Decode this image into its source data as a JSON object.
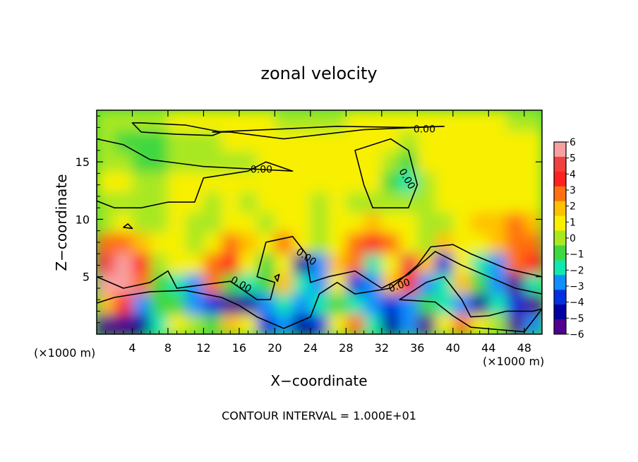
{
  "chart_data": {
    "type": "heatmap",
    "title": "zonal velocity",
    "xlabel": "X−coordinate",
    "ylabel": "Z−coordinate",
    "x_unit_left": "(×1000 m)",
    "x_unit_right": "(×1000 m)",
    "footer": "CONTOUR INTERVAL = 1.000E+01",
    "xlim": [
      0,
      50
    ],
    "ylim": [
      0,
      19.5
    ],
    "x_ticks": [
      4,
      8,
      12,
      16,
      20,
      24,
      28,
      32,
      36,
      40,
      44,
      48
    ],
    "y_ticks": [
      5,
      10,
      15
    ],
    "colorbar": {
      "range": [
        -6,
        6
      ],
      "ticks": [
        "6",
        "5",
        "4",
        "3",
        "2",
        "1",
        "0",
        "−1",
        "−2",
        "−3",
        "−4",
        "−5",
        "−6"
      ],
      "colors": [
        "#f8a0a0",
        "#f04040",
        "#ff2020",
        "#ff7010",
        "#ffc000",
        "#f8f000",
        "#a8e820",
        "#40d840",
        "#10e8b0",
        "#1090ff",
        "#0030e0",
        "#0000a0",
        "#500090"
      ]
    },
    "contour_label": "0.00",
    "field": [
      [
        -5.5,
        -6,
        -5,
        -2,
        1,
        0,
        -1,
        2,
        1,
        -4,
        -3,
        -5,
        -4,
        1,
        3,
        -2,
        -5,
        -3,
        -6,
        1,
        3,
        1,
        0,
        -6,
        -3
      ],
      [
        2,
        4,
        -3,
        -1,
        -1,
        -3,
        -4,
        -6,
        -5,
        -3,
        -2,
        -3,
        -2,
        -1,
        -2,
        -3,
        -4,
        -3,
        -1,
        -2,
        -3,
        -5,
        -2,
        -4,
        -6
      ],
      [
        6,
        6,
        3,
        -1,
        -2,
        -3,
        3,
        -1,
        -2,
        -1,
        2,
        -2,
        -3,
        1,
        -4,
        -3,
        2,
        4,
        -3,
        -2,
        2,
        -1,
        -3,
        -6,
        -2
      ],
      [
        5,
        6,
        4,
        0,
        1,
        1,
        3,
        4,
        1,
        -1,
        1,
        -5,
        -3,
        2,
        3,
        -2,
        1,
        5,
        2,
        -4,
        1,
        -2,
        -3,
        3,
        4
      ],
      [
        3,
        3,
        2,
        1,
        1,
        0,
        1,
        3,
        2,
        1,
        3,
        1,
        0,
        1,
        3,
        4,
        3,
        1,
        0,
        2,
        1,
        1,
        2,
        3,
        3
      ],
      [
        0,
        1,
        0,
        0,
        1,
        0,
        0,
        1,
        1,
        0,
        1,
        1,
        0,
        1,
        1,
        2,
        1,
        1,
        0,
        0,
        1,
        2,
        2,
        3,
        2
      ],
      [
        0,
        0,
        0,
        0,
        1,
        1,
        0,
        1,
        0,
        1,
        1,
        1,
        0,
        1,
        0,
        0,
        0,
        0,
        0,
        1,
        1,
        1,
        1,
        1,
        1
      ],
      [
        1,
        1,
        0,
        0,
        1,
        1,
        1,
        1,
        1,
        1,
        1,
        1,
        1,
        1,
        1,
        1,
        -1,
        -2,
        0,
        1,
        1,
        1,
        1,
        1,
        1
      ],
      [
        0,
        0,
        -1,
        -1,
        0,
        0,
        0,
        0,
        0,
        1,
        1,
        1,
        1,
        1,
        1,
        1,
        0,
        -1,
        1,
        1,
        1,
        1,
        1,
        1,
        1
      ],
      [
        0,
        -1,
        -1,
        -1,
        0,
        0,
        0,
        1,
        1,
        1,
        1,
        1,
        1,
        1,
        1,
        1,
        1,
        0,
        1,
        1,
        1,
        1,
        1,
        1,
        1
      ],
      [
        0,
        0,
        0,
        0,
        1,
        1,
        1,
        1,
        1,
        1,
        0,
        0,
        0,
        0,
        1,
        1,
        1,
        1,
        1,
        1,
        1,
        1,
        1,
        0,
        0
      ]
    ]
  }
}
